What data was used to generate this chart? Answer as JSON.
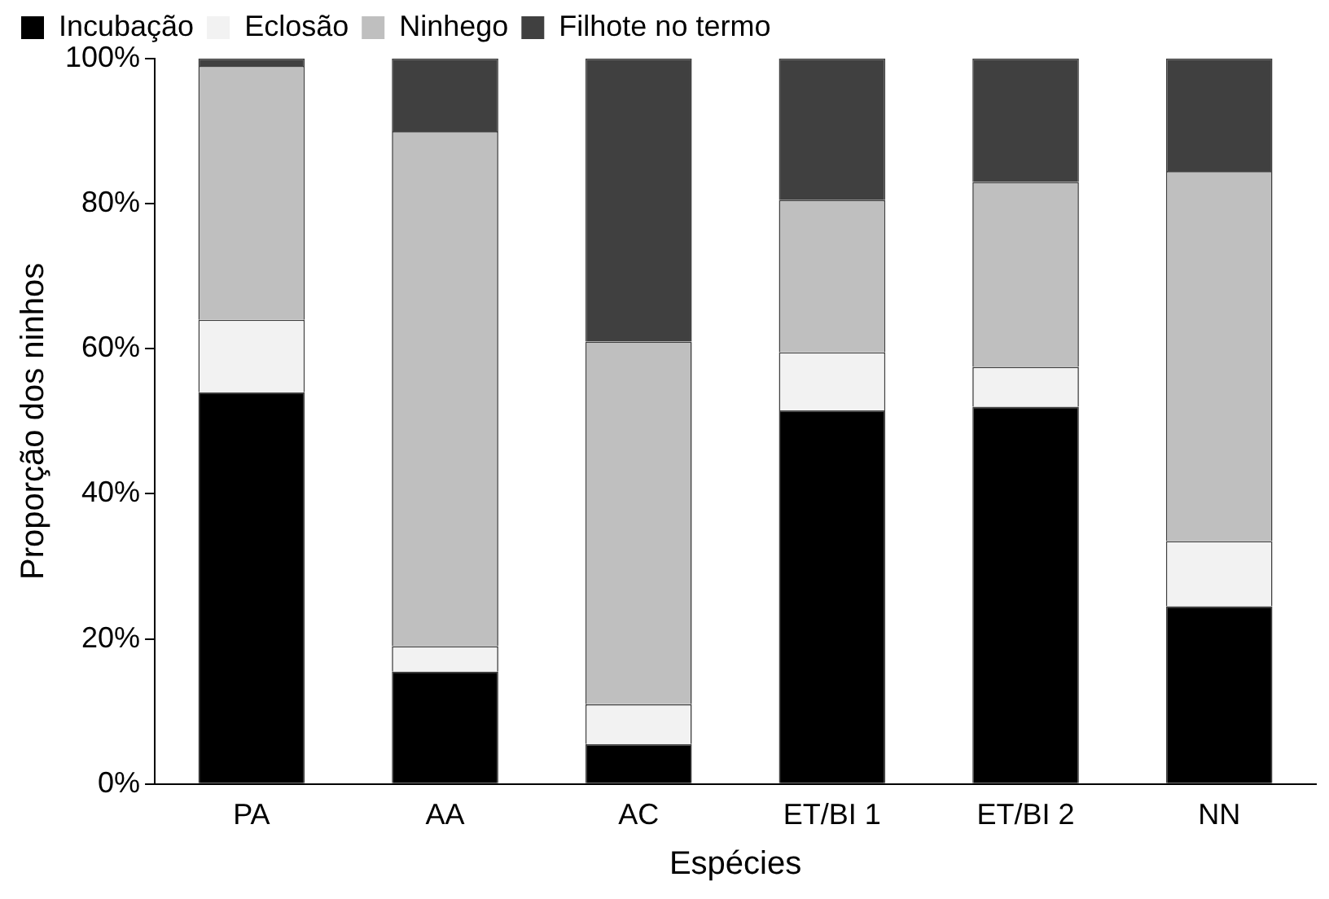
{
  "chart_data": {
    "type": "bar",
    "stacked": true,
    "xlabel": "Espécies",
    "ylabel": "Proporção dos ninhos",
    "categories": [
      "PA",
      "AA",
      "AC",
      "ET/BI 1",
      "ET/BI 2",
      "NN"
    ],
    "series": [
      {
        "name": "Incubação",
        "color": "#000000",
        "values": [
          54,
          15.5,
          5.5,
          51.5,
          52,
          24.5
        ]
      },
      {
        "name": "Eclosão",
        "color": "#f2f2f2",
        "values": [
          10,
          3.5,
          5.5,
          8,
          5.5,
          9
        ]
      },
      {
        "name": "Ninhego",
        "color": "#bfbfbf",
        "values": [
          35,
          71,
          50,
          21,
          25.5,
          51
        ]
      },
      {
        "name": "Filhote no termo",
        "color": "#404040",
        "values": [
          1,
          10,
          39,
          19.5,
          17,
          15.5
        ]
      }
    ],
    "ylim": [
      0,
      100
    ],
    "yticks": [
      {
        "value": 0,
        "label": "0%"
      },
      {
        "value": 20,
        "label": "20%"
      },
      {
        "value": 40,
        "label": "40%"
      },
      {
        "value": 60,
        "label": "60%"
      },
      {
        "value": 80,
        "label": "80%"
      },
      {
        "value": 100,
        "label": "100%"
      }
    ],
    "grid": false,
    "legend": "top left"
  }
}
